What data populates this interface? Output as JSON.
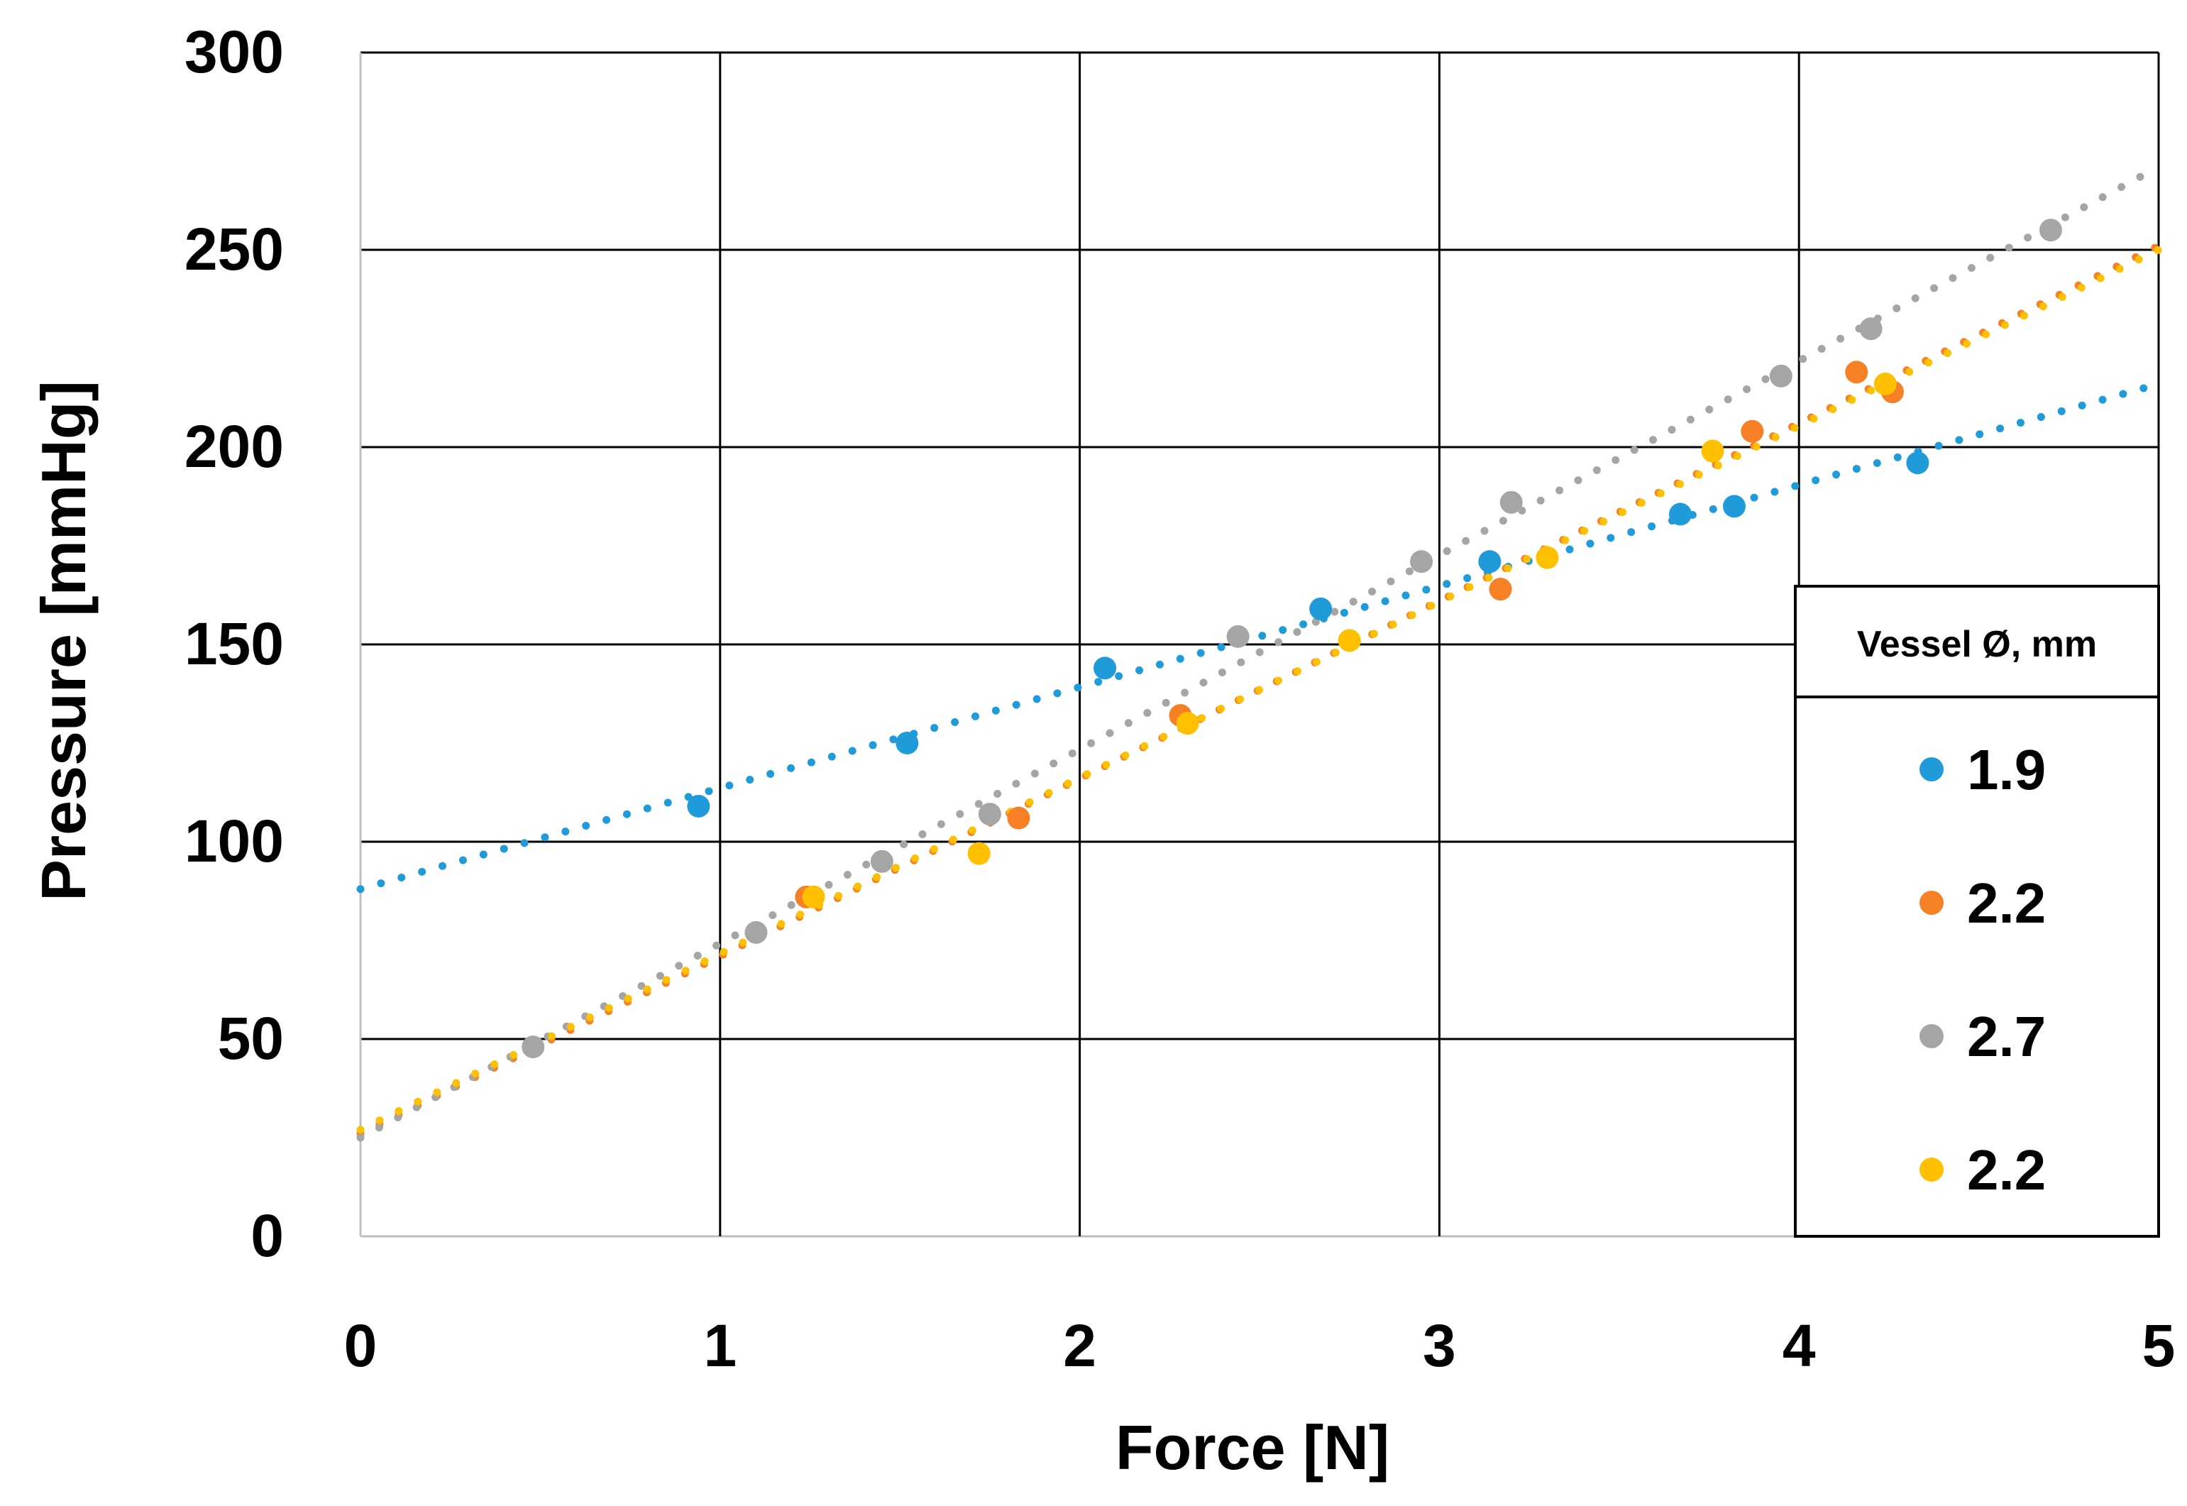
{
  "chart_data": {
    "type": "scatter",
    "title": "",
    "xlabel": "Force [N]",
    "ylabel": "Pressure [mmHg]",
    "xlim": [
      0,
      5
    ],
    "ylim": [
      0,
      300
    ],
    "xticks": [
      "0",
      "1",
      "2",
      "3",
      "4",
      "5"
    ],
    "yticks": [
      "0",
      "50",
      "100",
      "150",
      "200",
      "250",
      "300"
    ],
    "grid": true,
    "legend": {
      "title": "Vessel Ø, mm",
      "position": "right"
    },
    "series": [
      {
        "name": "1.9",
        "color": "#1F9BDA",
        "points": [
          [
            0.94,
            109
          ],
          [
            1.52,
            125
          ],
          [
            2.07,
            144
          ],
          [
            2.67,
            159
          ],
          [
            3.14,
            171
          ],
          [
            3.67,
            183
          ],
          [
            3.82,
            185
          ],
          [
            4.33,
            196
          ]
        ],
        "trendline": [
          [
            0,
            88
          ],
          [
            5,
            216
          ]
        ]
      },
      {
        "name": "2.2",
        "color": "#F58025",
        "points": [
          [
            1.24,
            86
          ],
          [
            1.83,
            106
          ],
          [
            2.28,
            132
          ],
          [
            3.17,
            164
          ],
          [
            3.87,
            204
          ],
          [
            4.16,
            219
          ],
          [
            4.26,
            214
          ]
        ],
        "trendline": [
          [
            0,
            26
          ],
          [
            5,
            251
          ]
        ]
      },
      {
        "name": "2.7",
        "color": "#A5A5A5",
        "points": [
          [
            0.48,
            48
          ],
          [
            1.1,
            77
          ],
          [
            1.45,
            95
          ],
          [
            1.75,
            107
          ],
          [
            2.44,
            152
          ],
          [
            2.95,
            171
          ],
          [
            3.2,
            186
          ],
          [
            3.95,
            218
          ],
          [
            4.2,
            230
          ],
          [
            4.7,
            255
          ]
        ],
        "trendline": [
          [
            0,
            25
          ],
          [
            5,
            271
          ]
        ]
      },
      {
        "name": "2.2",
        "color": "#FFC000",
        "points": [
          [
            1.26,
            86
          ],
          [
            1.72,
            97
          ],
          [
            2.3,
            130
          ],
          [
            2.75,
            151
          ],
          [
            3.3,
            172
          ],
          [
            3.76,
            199
          ],
          [
            4.24,
            216
          ]
        ],
        "trendline": [
          [
            0,
            27
          ],
          [
            5,
            250
          ]
        ]
      }
    ]
  }
}
